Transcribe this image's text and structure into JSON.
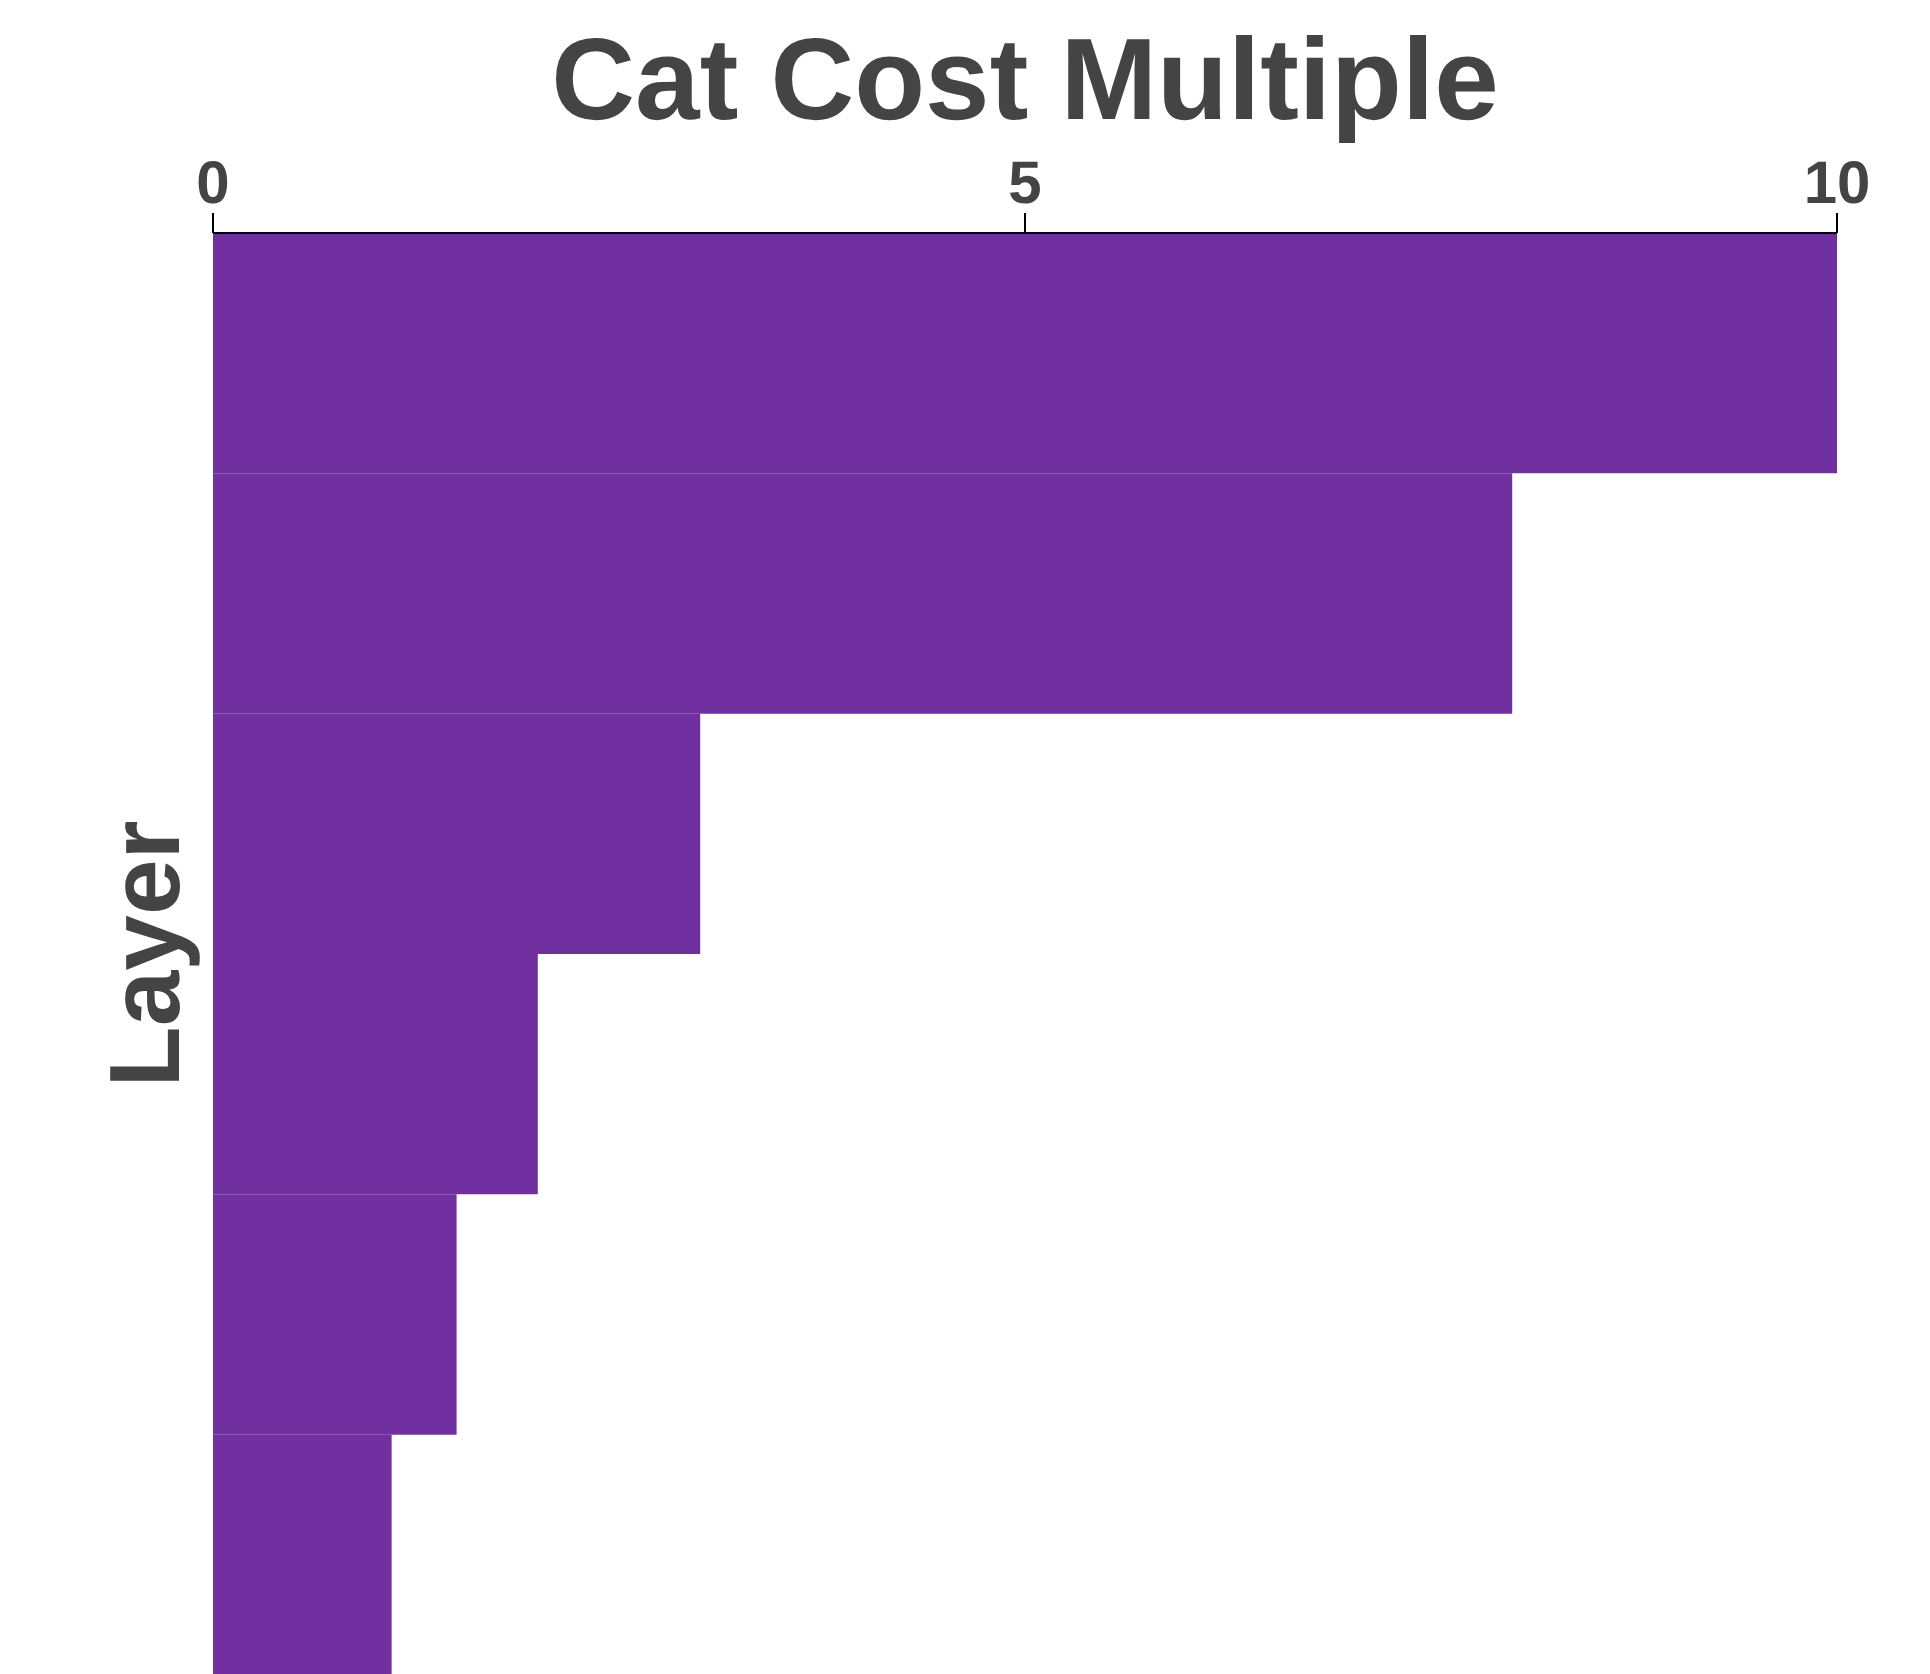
{
  "chart_data": {
    "type": "bar",
    "orientation": "horizontal",
    "title": "Cat Cost Multiple",
    "ylabel": "Layer",
    "categories": [
      null,
      null,
      null,
      null,
      null,
      null
    ],
    "values": [
      10,
      8,
      3,
      2,
      1.5,
      1.1
    ],
    "color": "#7030a0",
    "xlim": [
      0,
      10
    ],
    "xticks": [
      0,
      5,
      10
    ],
    "grid": false
  }
}
